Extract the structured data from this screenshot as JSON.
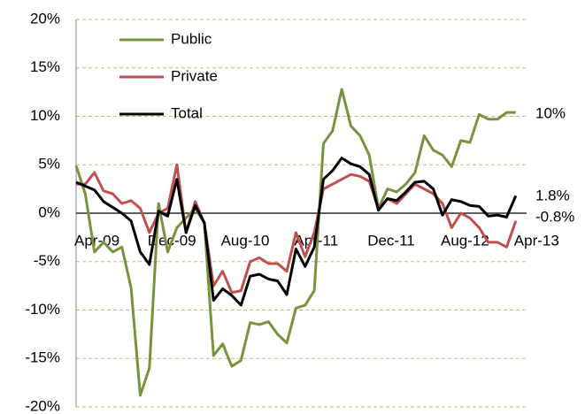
{
  "chart_data": {
    "type": "line",
    "categories": [
      "Apr-09",
      null,
      null,
      null,
      null,
      null,
      null,
      null,
      "Dec-09",
      null,
      null,
      null,
      null,
      null,
      null,
      null,
      "Aug-10",
      null,
      null,
      null,
      null,
      null,
      null,
      null,
      "Apr-11",
      null,
      null,
      null,
      null,
      null,
      null,
      null,
      "Dec-11",
      null,
      null,
      null,
      null,
      null,
      null,
      null,
      "Aug-12",
      null,
      null,
      null,
      null,
      null,
      null,
      null,
      "Apr-13"
    ],
    "series": [
      {
        "name": "Public",
        "color": "#77933c",
        "values": [
          4.9,
          2,
          -4,
          -3,
          -4,
          -3.5,
          -7.7,
          -18.8,
          -16,
          1,
          -4,
          -1.5,
          -0.5,
          0.5,
          -1,
          -14.7,
          -13.5,
          -15.8,
          -15.2,
          -11.3,
          -11.5,
          -11.2,
          -12.5,
          -13.4,
          -9.8,
          -9.5,
          -8,
          7.2,
          8.5,
          12.8,
          9,
          8,
          6,
          0.5,
          2.5,
          2.2,
          3,
          4.2,
          8,
          6.5,
          6,
          4.8,
          7.5,
          7.3,
          10.2,
          9.7,
          9.7,
          10.4,
          10.4
        ]
      },
      {
        "name": "Private",
        "color": "#c0504d",
        "values": [
          3,
          3,
          4.2,
          2.3,
          2,
          1,
          1.3,
          0.5,
          -2,
          0,
          0.5,
          5,
          -2,
          1.2,
          -1,
          -7.5,
          -6,
          -8.2,
          -8,
          -5,
          -4.6,
          -5.2,
          -5.2,
          -6,
          -2,
          -4.5,
          -2,
          2.5,
          3,
          3.5,
          4,
          3.8,
          3.3,
          0.5,
          1.5,
          1,
          2,
          3,
          2.5,
          2,
          1,
          -1.5,
          0,
          -0.5,
          -1.5,
          -3,
          -3,
          -3.5,
          -0.8
        ]
      },
      {
        "name": "Total",
        "color": "#000000",
        "values": [
          3.2,
          2.8,
          2.4,
          1.2,
          0.6,
          0,
          -0.8,
          -4,
          -5.3,
          0.2,
          -0.3,
          3.5,
          -2,
          0.8,
          -1,
          -9,
          -7.8,
          -8.5,
          -9.5,
          -6.5,
          -6.3,
          -6.8,
          -7,
          -8.4,
          -3.7,
          -5.5,
          -3.5,
          3.5,
          4.4,
          5.7,
          5.1,
          4.8,
          4,
          0.3,
          1.5,
          1.3,
          2.2,
          3.2,
          3.3,
          2.5,
          -0.2,
          1.4,
          1.2,
          0.8,
          0.7,
          -0.3,
          -0.2,
          -0.4,
          1.8
        ]
      }
    ],
    "annotations": [
      "10%",
      "1.8%",
      "-0.8%"
    ],
    "ylim": [
      -20,
      20
    ],
    "yticks": [
      {
        "value": -20,
        "label": "-20%"
      },
      {
        "value": -15,
        "label": "-15%"
      },
      {
        "value": -10,
        "label": "-10%"
      },
      {
        "value": -5,
        "label": "-5%"
      },
      {
        "value": 0,
        "label": "0%"
      },
      {
        "value": 5,
        "label": "5%"
      },
      {
        "value": 10,
        "label": "10%"
      },
      {
        "value": 15,
        "label": "15%"
      },
      {
        "value": 20,
        "label": "20%"
      }
    ],
    "grid": true
  }
}
